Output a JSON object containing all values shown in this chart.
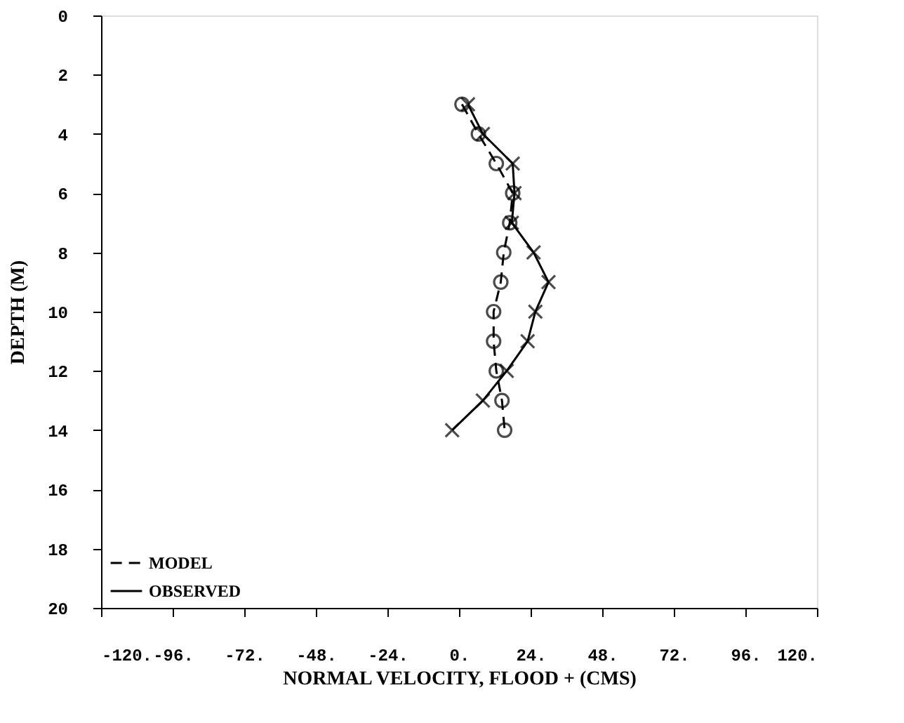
{
  "chart_data": {
    "type": "line",
    "xlabel": "NORMAL VELOCITY, FLOOD + (CMS)",
    "ylabel": "DEPTH (M)",
    "xlim": [
      -120,
      120
    ],
    "ylim": [
      20,
      0
    ],
    "xticks": [
      {
        "value": -120,
        "label": "-120."
      },
      {
        "value": -96,
        "label": "-96."
      },
      {
        "value": -72,
        "label": "-72."
      },
      {
        "value": -48,
        "label": "-48."
      },
      {
        "value": -24,
        "label": "-24."
      },
      {
        "value": 0,
        "label": "0."
      },
      {
        "value": 24,
        "label": "24."
      },
      {
        "value": 48,
        "label": "48."
      },
      {
        "value": 72,
        "label": "72."
      },
      {
        "value": 96,
        "label": "96."
      },
      {
        "value": 120,
        "label": "120."
      }
    ],
    "yticks": [
      0,
      2,
      4,
      6,
      8,
      10,
      12,
      14,
      16,
      18,
      20
    ],
    "grid": false,
    "legend": "bottom left",
    "series": [
      {
        "name": "MODEL",
        "color": "#000000",
        "line_style": "dashed",
        "marker": "circle",
        "x": [
          1,
          6.5,
          12.5,
          18,
          17,
          15,
          14,
          11.6,
          11.6,
          12.5,
          14.4,
          15.3
        ],
        "values": [
          3,
          4,
          5,
          6,
          7,
          8,
          9,
          10,
          11,
          12,
          13,
          14
        ]
      },
      {
        "name": "OBSERVED",
        "color": "#000000",
        "line_style": "solid",
        "marker": "cross",
        "x": [
          3,
          8,
          18,
          18.6,
          17.7,
          25,
          30,
          25.6,
          23,
          16,
          8,
          -2.3
        ],
        "values": [
          3,
          4,
          5,
          6,
          7,
          8,
          9,
          10,
          11,
          12,
          13,
          14
        ]
      }
    ]
  }
}
